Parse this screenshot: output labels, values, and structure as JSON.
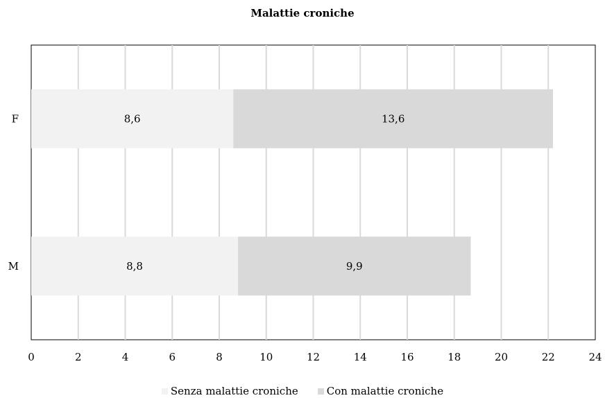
{
  "chart_data": {
    "type": "bar",
    "orientation": "horizontal",
    "stacked": true,
    "title": "Malattie croniche",
    "categories": [
      "F",
      "M"
    ],
    "series": [
      {
        "name": "Senza malattie croniche",
        "values": [
          8.6,
          8.8
        ],
        "labels": [
          "8,6",
          "8,8"
        ],
        "color": "#f2f2f2"
      },
      {
        "name": "Con malattie croniche",
        "values": [
          13.6,
          9.9
        ],
        "labels": [
          "13,6",
          "9,9"
        ],
        "color": "#d9d9d9"
      }
    ],
    "xlim": [
      0,
      24
    ],
    "xticks": [
      0,
      2,
      4,
      6,
      8,
      10,
      12,
      14,
      16,
      18,
      20,
      22,
      24
    ],
    "grid": true,
    "legend_position": "bottom"
  }
}
